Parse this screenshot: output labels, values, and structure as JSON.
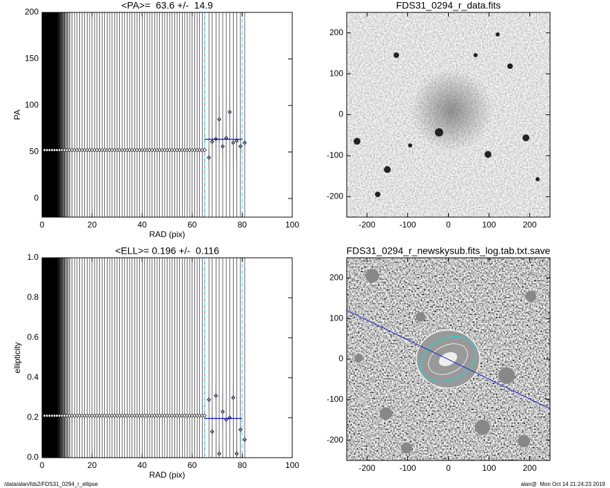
{
  "chart_data": [
    {
      "type": "scatter",
      "title": "<PA>=  63.6 +/-  14.9",
      "x_label": "RAD (pix)",
      "y_label": "PA",
      "xlim": [
        0,
        100
      ],
      "ylim": [
        -20,
        200
      ],
      "xticks": [
        0,
        20,
        40,
        60,
        80,
        100
      ],
      "yticks": [
        0,
        50,
        100,
        150,
        200
      ],
      "x": [
        1,
        2,
        3,
        4,
        5,
        6,
        7,
        8,
        9,
        10,
        11,
        12,
        13,
        14,
        15,
        16,
        17,
        18,
        19,
        20,
        21,
        22,
        23,
        24,
        25,
        26,
        27,
        28,
        29,
        30,
        31,
        32,
        33,
        34,
        35,
        36,
        37,
        38,
        39,
        40,
        41,
        42,
        43,
        44,
        45,
        46,
        47,
        48,
        49,
        50,
        51,
        52,
        53,
        54,
        55,
        56,
        57,
        58,
        59,
        60,
        61,
        62,
        63,
        64,
        65,
        66.7,
        68,
        69.5,
        70.8,
        72.2,
        73.6,
        75,
        76.4,
        77.8,
        79.3,
        81
      ],
      "values": [
        52,
        52,
        52,
        52,
        52,
        52,
        52,
        52,
        52,
        52,
        52,
        52,
        52,
        52,
        52,
        52,
        52,
        52,
        52,
        52,
        52,
        52,
        52,
        52,
        52,
        52,
        52,
        52,
        52,
        52,
        52,
        52,
        52,
        52,
        52,
        52,
        52,
        52,
        52,
        52,
        52,
        52,
        52,
        52,
        52,
        52,
        52,
        52,
        52,
        52,
        52,
        52,
        52,
        52,
        52,
        52,
        52,
        52,
        52,
        52,
        52,
        52,
        52,
        52,
        52,
        44,
        61,
        64,
        85,
        56,
        65,
        93,
        60,
        62,
        56,
        60
      ],
      "errors": [
        null,
        null,
        null,
        null,
        null,
        null,
        null,
        null,
        null,
        null,
        null,
        null,
        null,
        null,
        null,
        null,
        null,
        null,
        null,
        null,
        null,
        null,
        null,
        null,
        null,
        null,
        null,
        null,
        null,
        null,
        null,
        null,
        null,
        null,
        null,
        null,
        null,
        null,
        null,
        null,
        null,
        null,
        null,
        null,
        null,
        null,
        null,
        null,
        null,
        null,
        null,
        null,
        null,
        null,
        null,
        null,
        null,
        null,
        null,
        null,
        null,
        null,
        null,
        null,
        null,
        10,
        15,
        20,
        25,
        10,
        30,
        20,
        25,
        20,
        8,
        4
      ],
      "mean": 63.6,
      "fit_range": [
        65,
        80
      ],
      "color": "#000000",
      "mean_color": "#0000cc",
      "range_color": "#7fdfef"
    },
    {
      "type": "image",
      "title": "FDS31_0294_r_data.fits",
      "xlim": [
        -250,
        250
      ],
      "ylim": [
        -250,
        250
      ],
      "xticks": [
        -200,
        -100,
        0,
        100,
        200
      ],
      "yticks": [
        -200,
        -100,
        0,
        100,
        200
      ]
    },
    {
      "type": "scatter",
      "title": "<ELL>= 0.196 +/-  0.116",
      "x_label": "RAD (pix)",
      "y_label": "ellipticity",
      "xlim": [
        0,
        100
      ],
      "ylim": [
        0,
        1
      ],
      "xticks": [
        0,
        20,
        40,
        60,
        80,
        100
      ],
      "yticks": [
        {
          "value": 0,
          "label": "0.0"
        },
        0.2,
        0.4,
        0.6,
        0.8,
        {
          "value": 1,
          "label": "1.0"
        }
      ],
      "x": [
        1,
        2,
        3,
        4,
        5,
        6,
        7,
        8,
        9,
        10,
        11,
        12,
        13,
        14,
        15,
        16,
        17,
        18,
        19,
        20,
        21,
        22,
        23,
        24,
        25,
        26,
        27,
        28,
        29,
        30,
        31,
        32,
        33,
        34,
        35,
        36,
        37,
        38,
        39,
        40,
        41,
        42,
        43,
        44,
        45,
        46,
        47,
        48,
        49,
        50,
        51,
        52,
        53,
        54,
        55,
        56,
        57,
        58,
        59,
        60,
        61,
        62,
        63,
        64,
        65,
        66.7,
        68,
        69.5,
        70.8,
        72.2,
        73.6,
        75,
        76.4,
        77.8,
        79.3,
        81
      ],
      "values": [
        0.21,
        0.21,
        0.21,
        0.21,
        0.21,
        0.21,
        0.21,
        0.21,
        0.21,
        0.21,
        0.21,
        0.21,
        0.21,
        0.21,
        0.21,
        0.21,
        0.21,
        0.21,
        0.21,
        0.21,
        0.21,
        0.21,
        0.21,
        0.21,
        0.21,
        0.21,
        0.21,
        0.21,
        0.21,
        0.21,
        0.21,
        0.21,
        0.21,
        0.21,
        0.21,
        0.21,
        0.21,
        0.21,
        0.21,
        0.21,
        0.21,
        0.21,
        0.21,
        0.21,
        0.21,
        0.21,
        0.21,
        0.21,
        0.21,
        0.21,
        0.21,
        0.21,
        0.21,
        0.21,
        0.21,
        0.21,
        0.21,
        0.21,
        0.21,
        0.21,
        0.21,
        0.21,
        0.21,
        0.21,
        0.21,
        0.29,
        0.13,
        0.31,
        0.02,
        0.23,
        0.19,
        0.2,
        0.3,
        0.02,
        0.14,
        0.09
      ],
      "errors": [
        null,
        null,
        null,
        null,
        null,
        null,
        null,
        null,
        null,
        null,
        null,
        null,
        null,
        null,
        null,
        null,
        null,
        null,
        null,
        null,
        null,
        null,
        null,
        null,
        null,
        null,
        null,
        null,
        null,
        null,
        null,
        null,
        null,
        null,
        null,
        null,
        null,
        null,
        null,
        null,
        null,
        null,
        null,
        null,
        null,
        null,
        null,
        null,
        null,
        null,
        null,
        null,
        null,
        null,
        null,
        null,
        null,
        null,
        null,
        null,
        null,
        null,
        null,
        null,
        null,
        0.05,
        0.08,
        0.07,
        0.04,
        0.09,
        0.1,
        0.1,
        0.08,
        0.05,
        0.02,
        0.01
      ],
      "mean": 0.196,
      "fit_range": [
        65,
        80
      ],
      "color": "#000000",
      "mean_color": "#0000cc",
      "range_color": "#7fdfef"
    },
    {
      "type": "image",
      "title": "FDS31_0294_r_newskysub.fits_log.tab.txt.save",
      "xlim": [
        -250,
        250
      ],
      "ylim": [
        -250,
        250
      ],
      "xticks": [
        -200,
        -100,
        0,
        100,
        200
      ],
      "yticks": [
        -200,
        -100,
        0,
        100,
        200
      ]
    }
  ],
  "footer": {
    "left": "/data/alan/fds2/FDS31_0294_r_ellipse",
    "right": "alan@  Mon Oct 14 21:24:23 2019"
  }
}
